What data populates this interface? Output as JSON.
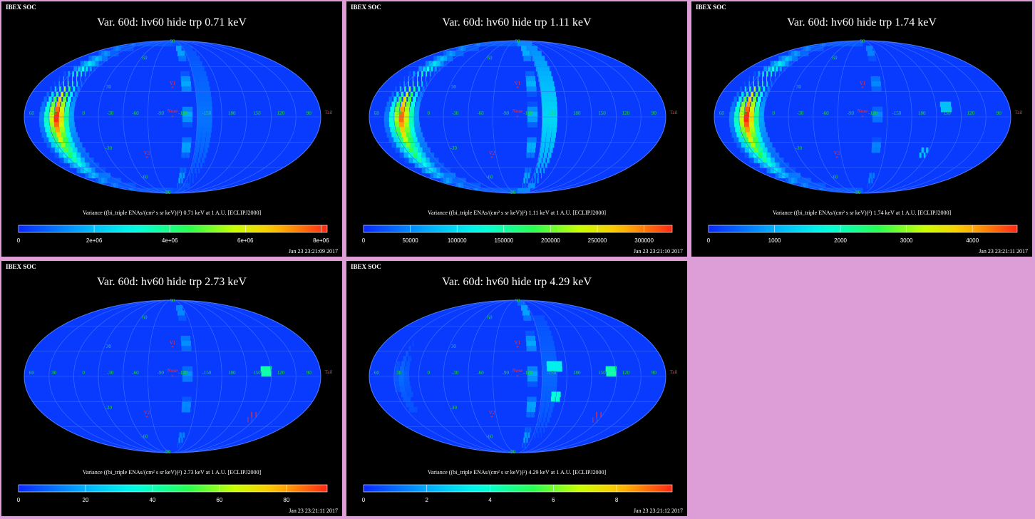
{
  "header_text": "IBEX SOC",
  "common": {
    "map_labels": {
      "lon_left": [
        "60",
        "30",
        "0",
        "-30",
        "-60",
        "-90",
        "-120",
        "-150",
        "180",
        "150",
        "120",
        "90"
      ],
      "lat": [
        "90",
        "60",
        "30",
        "-30",
        "-60",
        "-90"
      ],
      "nose": "Nose",
      "tail": "Tail",
      "v1": "V1",
      "v2": "V2"
    }
  },
  "panels": [
    {
      "title": "Var. 60d: hv60 hide trp 0.71 keV",
      "energy": "0.71 keV",
      "colorbar_label": "Variance ((bi_triple ENAs/(cm² s sr keV))²) 0.71 keV at 1 A.U. [ECLIPJ2000]",
      "ticks": [
        "0",
        "2e+06",
        "4e+06",
        "6e+06",
        "8e+06"
      ],
      "timestamp": "Jan 23 23:21:09 2017",
      "max_color": "#ff2010"
    },
    {
      "title": "Var. 60d: hv60 hide trp 1.11 keV",
      "energy": "1.11 keV",
      "colorbar_label": "Variance ((bi_triple ENAs/(cm² s sr keV))²) 1.11 keV at 1 A.U. [ECLIPJ2000]",
      "ticks": [
        "0",
        "50000",
        "100000",
        "150000",
        "200000",
        "250000",
        "300000"
      ],
      "timestamp": "Jan 23 23:21:10 2017",
      "max_color": "#ff2010"
    },
    {
      "title": "Var. 60d: hv60 hide trp 1.74 keV",
      "energy": "1.74 keV",
      "colorbar_label": "Variance ((bi_triple ENAs/(cm² s sr keV))²) 1.74 keV at 1 A.U. [ECLIPJ2000]",
      "ticks": [
        "0",
        "1000",
        "2000",
        "3000",
        "4000"
      ],
      "timestamp": "Jan 23 23:21:11 2017",
      "max_color": "#ff2010"
    },
    {
      "title": "Var. 60d: hv60 hide trp 2.73 keV",
      "energy": "2.73 keV",
      "colorbar_label": "Variance ((bi_triple ENAs/(cm² s sr keV))²) 2.73 keV at 1 A.U. [ECLIPJ2000]",
      "ticks": [
        "0",
        "20",
        "40",
        "60",
        "80"
      ],
      "timestamp": "Jan 23 23:21:11 2017",
      "max_color": "#ff2010"
    },
    {
      "title": "Var. 60d: hv60 hide trp 4.29 keV",
      "energy": "4.29 keV",
      "colorbar_label": "Variance ((bi_triple ENAs/(cm² s sr keV))²) 4.29 keV at 1 A.U. [ECLIPJ2000]",
      "ticks": [
        "0",
        "2",
        "4",
        "6",
        "8"
      ],
      "timestamp": "Jan 23 23:21:12 2017",
      "max_color": "#ff2010"
    }
  ]
}
